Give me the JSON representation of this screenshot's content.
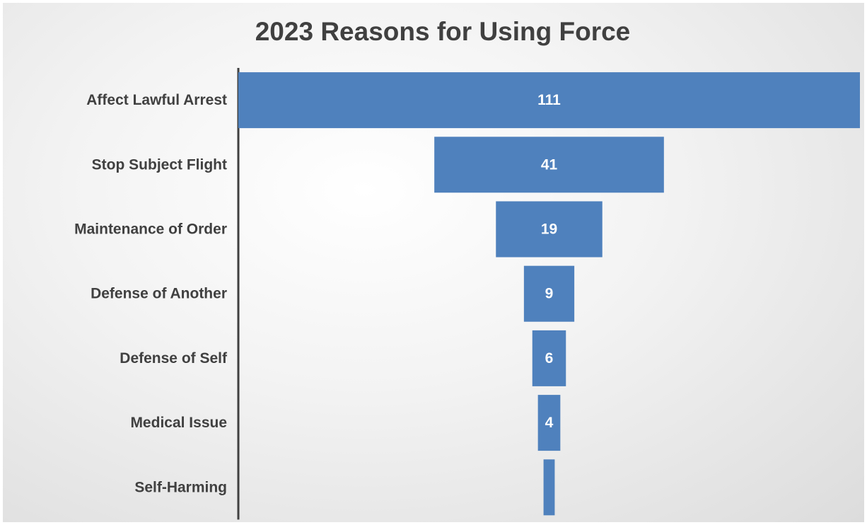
{
  "chart_data": {
    "type": "bar",
    "subtype": "funnel",
    "title": "2023 Reasons for Using Force",
    "categories": [
      "Affect Lawful Arrest",
      "Stop Subject Flight",
      "Maintenance of Order",
      "Defense of Another",
      "Defense of Self",
      "Medical Issue",
      "Self-Harming"
    ],
    "values": [
      111,
      41,
      19,
      9,
      6,
      4,
      2
    ],
    "data_labels": [
      "111",
      "41",
      "19",
      "9",
      "6",
      "4",
      ""
    ],
    "xlabel": "",
    "ylabel": "",
    "bar_color": "#4f81bd",
    "label_color": "#404040",
    "value_label_color": "#ffffff",
    "background": "radial gradient white to light gray",
    "grid": false,
    "legend": "none"
  }
}
